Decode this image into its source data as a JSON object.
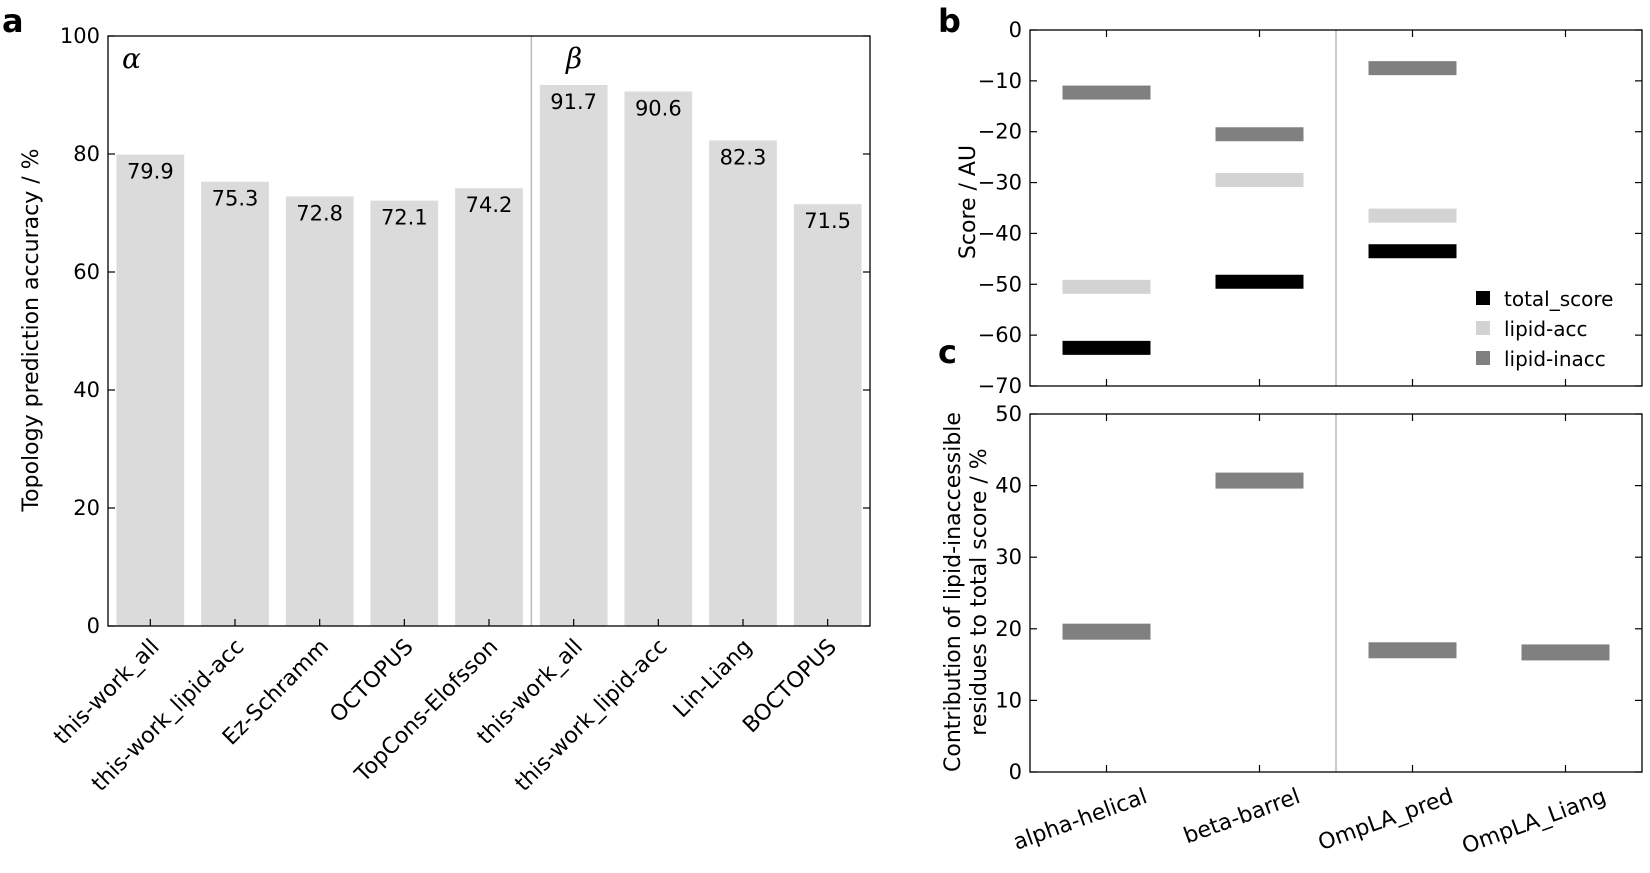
{
  "chart_data": [
    {
      "panel": "a",
      "type": "bar",
      "ylabel": "Topology prediction accuracy / %",
      "ylim": [
        0,
        100
      ],
      "yticks": [
        "0",
        "20",
        "40",
        "60",
        "80",
        "100"
      ],
      "group_labels": [
        "α",
        "β"
      ],
      "categories": [
        "this-work_all",
        "this-work_lipid-acc",
        "Ez-Schramm",
        "OCTOPUS",
        "TopCons-Elofsson",
        "this-work_all",
        "this-work_lipid-acc",
        "Lin-Liang",
        "BOCTOPUS"
      ],
      "values": [
        79.9,
        75.3,
        72.8,
        72.1,
        74.2,
        91.7,
        90.6,
        82.3,
        71.5
      ],
      "value_labels": [
        "79.9",
        "75.3",
        "72.8",
        "72.1",
        "74.2",
        "91.7",
        "90.6",
        "82.3",
        "71.5"
      ],
      "bar_color": "#dbdbdb"
    },
    {
      "panel": "b",
      "type": "scatter",
      "ylabel": "Score / AU",
      "ylim": [
        -70,
        0
      ],
      "yticks": [
        "0",
        "−10",
        "−20",
        "−30",
        "−40",
        "−50",
        "−60",
        "−70"
      ],
      "categories": [
        "alpha-helical",
        "beta-barrel",
        "OmpLA_pred",
        "OmpLA_Liang"
      ],
      "series": [
        {
          "name": "total_score",
          "color": "#000000",
          "values": [
            -62.5,
            -49.5,
            -43.5,
            null
          ]
        },
        {
          "name": "lipid-acc",
          "color": "#d3d3d3",
          "values": [
            -50.5,
            -29.5,
            -36.5,
            null
          ]
        },
        {
          "name": "lipid-inacc",
          "color": "#808080",
          "values": [
            -12.3,
            -20.5,
            -7.5,
            null
          ]
        }
      ],
      "legend_position": "lower-right"
    },
    {
      "panel": "c",
      "type": "scatter",
      "ylabel_lines": [
        "Contribution of lipid-inaccessible",
        "residues to total score / %"
      ],
      "ylim": [
        0,
        50
      ],
      "yticks": [
        "0",
        "10",
        "20",
        "30",
        "40",
        "50"
      ],
      "categories": [
        "alpha-helical",
        "beta-barrel",
        "OmpLA_pred",
        "OmpLA_Liang"
      ],
      "series": [
        {
          "name": "lipid-inacc",
          "color": "#808080",
          "values": [
            19.6,
            40.7,
            17.0,
            16.7
          ]
        }
      ]
    }
  ]
}
